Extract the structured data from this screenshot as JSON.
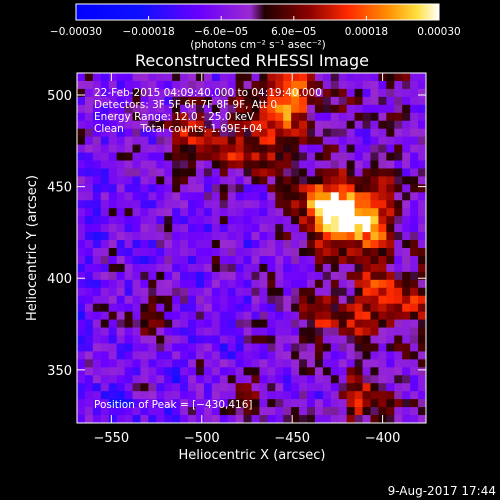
{
  "chart_data": {
    "type": "heatmap",
    "title": "Reconstructed RHESSI Image",
    "xlabel": "Heliocentric X (arcsec)",
    "ylabel": "Heliocentric Y (arcsec)",
    "xlim": [
      -569,
      -376
    ],
    "ylim": [
      321,
      512
    ],
    "x_ticks": [
      -550,
      -500,
      -450,
      -400
    ],
    "y_ticks": [
      350,
      400,
      450,
      500
    ],
    "x_tick_labels": [
      "−550",
      "−500",
      "−450",
      "−400"
    ],
    "y_tick_labels": [
      "350",
      "400",
      "450",
      "500"
    ],
    "colorbar": {
      "range": [
        -0.0003,
        0.0003
      ],
      "tick_values": [
        -0.0003,
        -0.00018,
        -6e-05,
        6e-05,
        0.00018,
        0.0003
      ],
      "tick_labels": [
        "−0.00030",
        "−0.00018",
        "−6.0e−05",
        "6.0e−05",
        "0.00018",
        "0.00030"
      ],
      "unit_label": "(photons cm⁻² s⁻¹ asec⁻²)"
    },
    "annotations": [
      "22-Feb-2015 04:09:40.000 to 04:19:40.000",
      "Detectors: 3F 5F 6F 7F 8F 9F, Att 0",
      "Energy Range: 12.0 - 25.0 keV",
      "Clean     Total counts: 1.69E+04",
      "Position of Peak = [−430,416]"
    ],
    "peak": {
      "x": -430,
      "y": 416
    },
    "grid": false
  },
  "footer": {
    "date": "9-Aug-2017 17:44"
  }
}
